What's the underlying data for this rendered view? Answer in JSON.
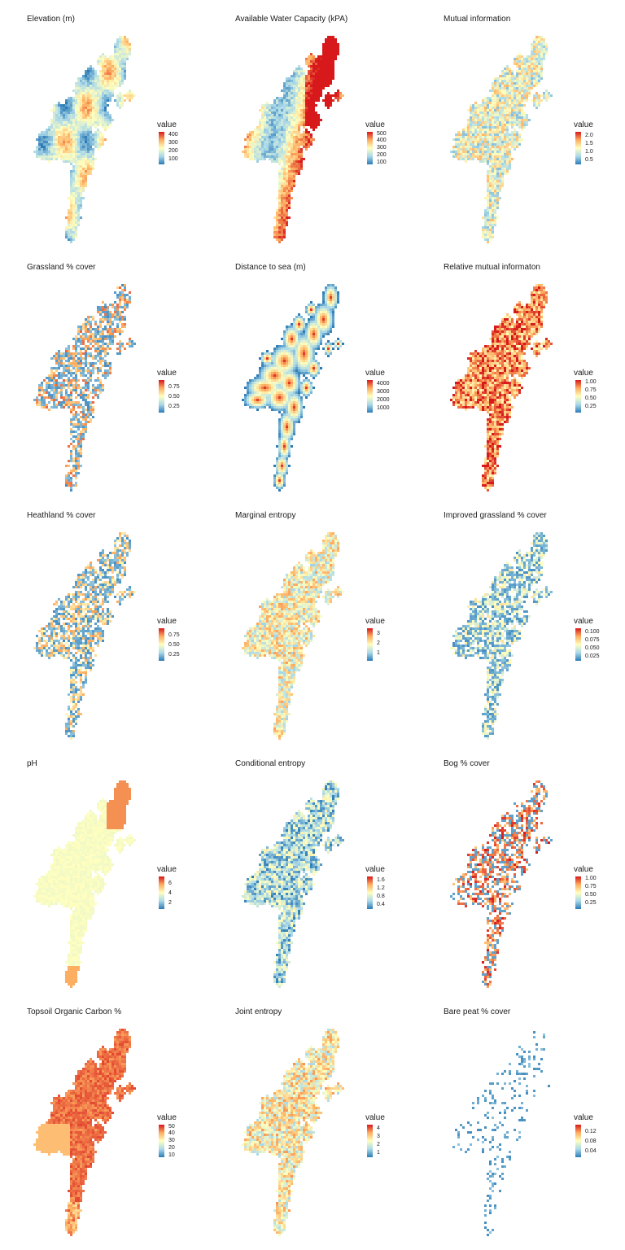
{
  "colors": {
    "scale": [
      "#2c7bb6",
      "#abd9e9",
      "#ffffbf",
      "#fdae61",
      "#d7191c"
    ],
    "background": "#ffffff"
  },
  "panels": [
    {
      "id": "elevation",
      "title": "Elevation (m)",
      "legend_title": "value",
      "ticks": [
        "400",
        "300",
        "200",
        "100"
      ],
      "tick_fracs": [
        0.08,
        0.33,
        0.58,
        0.83
      ],
      "pattern": "smooth",
      "coverage": 1.0,
      "bias": 0.25
    },
    {
      "id": "awc",
      "title": "Available Water Capacity (kPA)",
      "legend_title": "value",
      "ticks": [
        "500",
        "400",
        "300",
        "200",
        "100"
      ],
      "tick_fracs": [
        0.05,
        0.27,
        0.49,
        0.71,
        0.93
      ],
      "pattern": "awc",
      "coverage": 1.0,
      "bias": 0.65
    },
    {
      "id": "mi",
      "title": "Mutual information",
      "legend_title": "value",
      "ticks": [
        "2.0",
        "1.5",
        "1.0",
        "0.5"
      ],
      "tick_fracs": [
        0.12,
        0.37,
        0.62,
        0.87
      ],
      "pattern": "noise",
      "coverage": 1.0,
      "bias": 0.45
    },
    {
      "id": "grassland",
      "title": "Grassland % cover",
      "legend_title": "value",
      "ticks": [
        "0.75",
        "0.50",
        "0.25"
      ],
      "tick_fracs": [
        0.2,
        0.5,
        0.8
      ],
      "pattern": "sparse",
      "coverage": 0.75,
      "bias": 0.4
    },
    {
      "id": "distsea",
      "title": "Distance to sea (m)",
      "legend_title": "value",
      "ticks": [
        "4000",
        "3000",
        "2000",
        "1000"
      ],
      "tick_fracs": [
        0.1,
        0.35,
        0.6,
        0.85
      ],
      "pattern": "distance",
      "coverage": 1.0,
      "bias": 0.2
    },
    {
      "id": "rmi",
      "title": "Relative mutual informaton",
      "legend_title": "value",
      "ticks": [
        "1.00",
        "0.75",
        "0.50",
        "0.25"
      ],
      "tick_fracs": [
        0.05,
        0.3,
        0.55,
        0.8
      ],
      "pattern": "noise",
      "coverage": 1.0,
      "bias": 0.78
    },
    {
      "id": "heathland",
      "title": "Heathland % cover",
      "legend_title": "value",
      "ticks": [
        "0.75",
        "0.50",
        "0.25"
      ],
      "tick_fracs": [
        0.2,
        0.5,
        0.8
      ],
      "pattern": "sparse",
      "coverage": 0.8,
      "bias": 0.3
    },
    {
      "id": "marginal",
      "title": "Marginal entropy",
      "legend_title": "value",
      "ticks": [
        "3",
        "2",
        "1"
      ],
      "tick_fracs": [
        0.15,
        0.45,
        0.75
      ],
      "pattern": "noise",
      "coverage": 1.0,
      "bias": 0.5
    },
    {
      "id": "impgrass",
      "title": "Improved grassland % cover",
      "legend_title": "value",
      "ticks": [
        "0.100",
        "0.075",
        "0.050",
        "0.025"
      ],
      "tick_fracs": [
        0.1,
        0.35,
        0.6,
        0.85
      ],
      "pattern": "sparse",
      "coverage": 0.85,
      "bias": 0.12
    },
    {
      "id": "ph",
      "title": "pH",
      "legend_title": "value",
      "ticks": [
        "6",
        "4",
        "2"
      ],
      "tick_fracs": [
        0.2,
        0.5,
        0.8
      ],
      "pattern": "ph",
      "coverage": 1.0,
      "bias": 0.5
    },
    {
      "id": "condent",
      "title": "Conditional entropy",
      "legend_title": "value",
      "ticks": [
        "1.6",
        "1.2",
        "0.8",
        "0.4"
      ],
      "tick_fracs": [
        0.1,
        0.35,
        0.6,
        0.85
      ],
      "pattern": "noise",
      "coverage": 1.0,
      "bias": 0.28
    },
    {
      "id": "bog",
      "title": "Bog % cover",
      "legend_title": "value",
      "ticks": [
        "1.00",
        "0.75",
        "0.50",
        "0.25"
      ],
      "tick_fracs": [
        0.05,
        0.3,
        0.55,
        0.8
      ],
      "pattern": "bog",
      "coverage": 0.6,
      "bias": 0.55
    },
    {
      "id": "toc",
      "title": "Topsoil Organic Carbon %",
      "legend_title": "value",
      "ticks": [
        "50",
        "40",
        "30",
        "20",
        "10"
      ],
      "tick_fracs": [
        0.05,
        0.27,
        0.49,
        0.71,
        0.93
      ],
      "pattern": "toc",
      "coverage": 1.0,
      "bias": 0.78
    },
    {
      "id": "jointent",
      "title": "Joint entropy",
      "legend_title": "value",
      "ticks": [
        "4",
        "3",
        "2",
        "1"
      ],
      "tick_fracs": [
        0.1,
        0.35,
        0.6,
        0.85
      ],
      "pattern": "noise",
      "coverage": 1.0,
      "bias": 0.52
    },
    {
      "id": "barepeat",
      "title": "Bare peat % cover",
      "legend_title": "value",
      "ticks": [
        "0.12",
        "0.08",
        "0.04"
      ],
      "tick_fracs": [
        0.2,
        0.5,
        0.8
      ],
      "pattern": "peat",
      "coverage": 0.2,
      "bias": 0.05
    }
  ]
}
